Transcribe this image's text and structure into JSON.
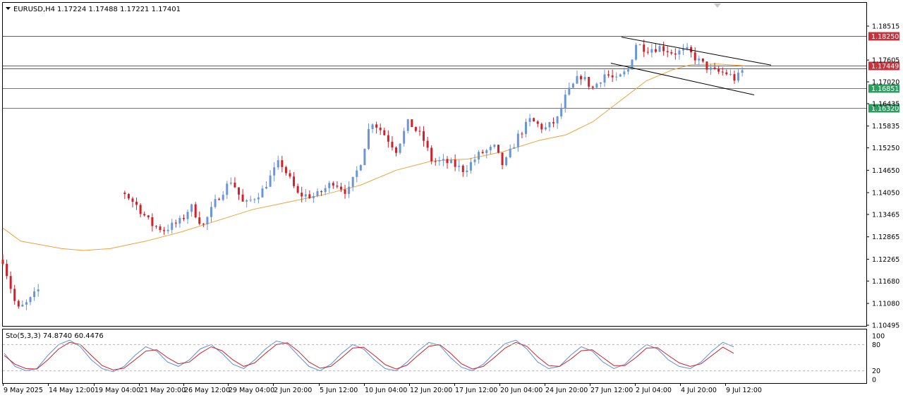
{
  "header": {
    "symbol": "EURUSD,H4",
    "ohlc": "1.17224 1.17488 1.17221 1.17401"
  },
  "stochastic": {
    "label": "Sto(5,3,3) 74.8740 60.4476",
    "levels": [
      "100",
      "80",
      "20",
      "0"
    ]
  },
  "colors": {
    "bull": "#6a96d8",
    "bear": "#d0202a",
    "ma": "#f0a23a",
    "resistance": "#c8323c",
    "support": "#2aa060",
    "stoch_main": "#5b8fe0",
    "stoch_signal": "#d0202a"
  },
  "chart_data": [
    {
      "type": "candlestick",
      "title": "",
      "ylim": [
        1.10495,
        1.18515
      ],
      "y_ticks": [
        "1.18515",
        "1.17605",
        "1.17020",
        "1.16435",
        "1.15835",
        "1.15250",
        "1.14650",
        "1.14050",
        "1.13465",
        "1.12865",
        "1.12265",
        "1.11680",
        "1.11080",
        "1.10495"
      ],
      "x_ticks": [
        "9 May 2025",
        "14 May 12:00",
        "19 May 04:00",
        "21 May 20:00",
        "26 May 12:00",
        "29 May 04:00",
        "2 Jun 20:00",
        "5 Jun 12:00",
        "10 Jun 04:00",
        "12 Jun 20:00",
        "17 Jun 12:00",
        "20 Jun 04:00",
        "24 Jun 20:00",
        "27 Jun 12:00",
        "2 Jul 04:00",
        "4 Jul 20:00",
        "9 Jul 12:00"
      ],
      "price_levels": [
        {
          "label": "1.18250",
          "value": 1.1825,
          "kind": "resistance"
        },
        {
          "label": "1.17449",
          "value": 1.17449,
          "kind": "resistance"
        },
        {
          "label": "1.16851",
          "value": 1.16851,
          "kind": "support"
        },
        {
          "label": "1.16320",
          "value": 1.1632,
          "kind": "support"
        }
      ],
      "channel": {
        "upper": [
          [
            0.05,
            1.1822
          ],
          [
            0.3,
            1.1747
          ]
        ],
        "lower": [
          [
            0.02,
            1.1752
          ],
          [
            0.28,
            1.1667
          ]
        ]
      },
      "close_path": [
        [
          0.0,
          1.1225
        ],
        [
          0.8,
          1.109
        ],
        [
          1.4,
          1.111
        ],
        [
          2.0,
          1.1145
        ],
        [
          2.8,
          1.1175
        ],
        [
          3.0,
          1.124
        ],
        [
          3.3,
          1.131
        ],
        [
          4.0,
          1.1345
        ],
        [
          5.0,
          1.13
        ],
        [
          6.0,
          1.1375
        ],
        [
          6.7,
          1.141
        ],
        [
          7.5,
          1.137
        ],
        [
          8.3,
          1.132
        ],
        [
          9.0,
          1.1305
        ],
        [
          10.0,
          1.133
        ],
        [
          10.5,
          1.137
        ],
        [
          11.2,
          1.1315
        ],
        [
          12.0,
          1.139
        ],
        [
          12.8,
          1.144
        ],
        [
          13.5,
          1.137
        ],
        [
          14.5,
          1.141
        ],
        [
          15.5,
          1.149
        ],
        [
          16.5,
          1.14
        ],
        [
          17.5,
          1.1395
        ],
        [
          18.5,
          1.1435
        ],
        [
          19.3,
          1.1405
        ],
        [
          20.0,
          1.1485
        ],
        [
          20.6,
          1.16
        ],
        [
          21.2,
          1.157
        ],
        [
          22.0,
          1.152
        ],
        [
          22.7,
          1.1595
        ],
        [
          23.5,
          1.155
        ],
        [
          24.0,
          1.149
        ],
        [
          25.0,
          1.1485
        ],
        [
          25.8,
          1.1465
        ],
        [
          26.7,
          1.151
        ],
        [
          27.5,
          1.1525
        ],
        [
          28.0,
          1.1475
        ],
        [
          28.8,
          1.1555
        ],
        [
          29.5,
          1.16
        ],
        [
          30.3,
          1.1575
        ],
        [
          31.0,
          1.16
        ],
        [
          31.5,
          1.1665
        ],
        [
          32.3,
          1.172
        ],
        [
          33.0,
          1.1685
        ],
        [
          33.7,
          1.1725
        ],
        [
          34.3,
          1.1705
        ],
        [
          35.0,
          1.1735
        ],
        [
          35.4,
          1.1805
        ],
        [
          36.0,
          1.179
        ],
        [
          36.8,
          1.1795
        ],
        [
          37.5,
          1.178
        ],
        [
          38.3,
          1.1785
        ],
        [
          39.0,
          1.1755
        ],
        [
          39.7,
          1.173
        ],
        [
          40.5,
          1.1725
        ],
        [
          41.0,
          1.1708
        ],
        [
          41.5,
          1.174
        ]
      ],
      "moving_average": [
        [
          0.0,
          1.131
        ],
        [
          1.0,
          1.1275
        ],
        [
          3.3,
          1.1255
        ],
        [
          4.5,
          1.125
        ],
        [
          6.0,
          1.1255
        ],
        [
          8.0,
          1.1275
        ],
        [
          10.0,
          1.13
        ],
        [
          12.0,
          1.133
        ],
        [
          14.0,
          1.136
        ],
        [
          16.0,
          1.138
        ],
        [
          18.0,
          1.14
        ],
        [
          20.0,
          1.1425
        ],
        [
          22.0,
          1.1465
        ],
        [
          24.0,
          1.149
        ],
        [
          26.0,
          1.1495
        ],
        [
          28.0,
          1.1515
        ],
        [
          30.0,
          1.1545
        ],
        [
          31.5,
          1.156
        ],
        [
          33.0,
          1.1595
        ],
        [
          34.5,
          1.165
        ],
        [
          36.0,
          1.1705
        ],
        [
          37.5,
          1.1735
        ],
        [
          38.5,
          1.1748
        ],
        [
          40.0,
          1.175
        ],
        [
          41.5,
          1.1745
        ]
      ]
    },
    {
      "type": "line",
      "title": "",
      "ylim": [
        0,
        100
      ],
      "levels": [
        20,
        80
      ],
      "series": [
        {
          "values": [
            60,
            30,
            20,
            25,
            55,
            80,
            90,
            75,
            45,
            25,
            18,
            30,
            55,
            75,
            65,
            40,
            30,
            45,
            70,
            80,
            60,
            35,
            25,
            45,
            70,
            88,
            82,
            55,
            30,
            20,
            35,
            60,
            80,
            70,
            45,
            25,
            20,
            40,
            65,
            85,
            78,
            50,
            28,
            20,
            35,
            60,
            82,
            90,
            70,
            40,
            25,
            30,
            55,
            75,
            65,
            40,
            25,
            35,
            60,
            80,
            70,
            45,
            30,
            25,
            40,
            65,
            85,
            75
          ]
        },
        {
          "values": [
            55,
            35,
            25,
            24,
            45,
            70,
            85,
            80,
            55,
            32,
            22,
            26,
            45,
            65,
            68,
            50,
            36,
            40,
            60,
            75,
            66,
            45,
            30,
            38,
            60,
            80,
            84,
            65,
            40,
            26,
            30,
            50,
            72,
            74,
            55,
            34,
            24,
            33,
            55,
            76,
            80,
            60,
            36,
            24,
            30,
            50,
            72,
            85,
            76,
            52,
            32,
            30,
            46,
            66,
            68,
            50,
            32,
            32,
            50,
            72,
            73,
            55,
            38,
            30,
            36,
            55,
            74,
            60
          ]
        }
      ]
    }
  ]
}
